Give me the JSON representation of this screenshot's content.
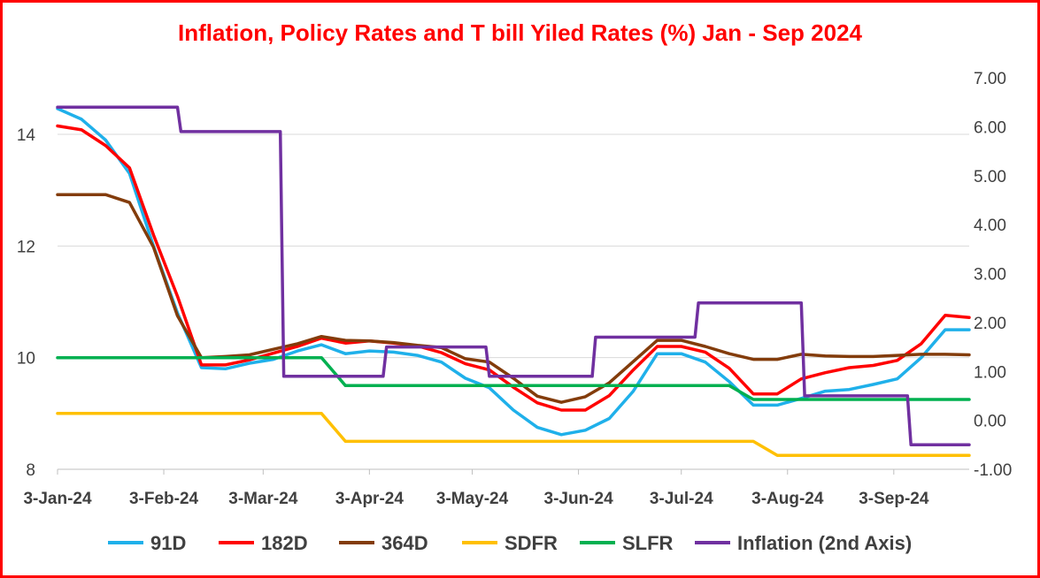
{
  "chart_data": {
    "type": "line",
    "title": "Inflation, Policy Rates and T bill Yiled Rates (%) Jan - Sep 2024",
    "x_tick_labels": [
      "3-Jan-24",
      "3-Feb-24",
      "3-Mar-24",
      "3-Apr-24",
      "3-May-24",
      "3-Jun-24",
      "3-Jul-24",
      "3-Aug-24",
      "3-Sep-24"
    ],
    "y_left": {
      "ticks": [
        "8",
        "10",
        "12",
        "14"
      ],
      "ylim": [
        8,
        15
      ]
    },
    "y_right": {
      "ticks": [
        "-1.00",
        "0.00",
        "1.00",
        "2.00",
        "3.00",
        "4.00",
        "5.00",
        "6.00",
        "7.00"
      ],
      "ylim": [
        -1,
        7.5
      ]
    },
    "grid": "horizontal",
    "legend_position": "bottom",
    "x": [
      "2024-01-03",
      "2024-01-10",
      "2024-01-17",
      "2024-01-24",
      "2024-01-31",
      "2024-02-07",
      "2024-02-14",
      "2024-02-21",
      "2024-02-28",
      "2024-03-06",
      "2024-03-13",
      "2024-03-20",
      "2024-03-27",
      "2024-04-03",
      "2024-04-10",
      "2024-04-17",
      "2024-04-24",
      "2024-05-01",
      "2024-05-08",
      "2024-05-15",
      "2024-05-22",
      "2024-05-29",
      "2024-06-05",
      "2024-06-12",
      "2024-06-19",
      "2024-06-26",
      "2024-07-03",
      "2024-07-10",
      "2024-07-17",
      "2024-07-24",
      "2024-07-31",
      "2024-08-07",
      "2024-08-14",
      "2024-08-21",
      "2024-08-28",
      "2024-09-04",
      "2024-09-11",
      "2024-09-18",
      "2024-09-25"
    ],
    "series": [
      {
        "name": "91D",
        "color": "#1fb0ea",
        "axis": "left",
        "values": [
          14.46,
          14.27,
          13.9,
          13.3,
          12.0,
          10.8,
          9.82,
          9.8,
          9.9,
          9.97,
          10.12,
          10.23,
          10.07,
          10.12,
          10.1,
          10.04,
          9.92,
          9.63,
          9.46,
          9.06,
          8.75,
          8.62,
          8.7,
          8.91,
          9.4,
          10.07,
          10.07,
          9.92,
          9.57,
          9.15,
          9.15,
          9.27,
          9.4,
          9.43,
          9.52,
          9.62,
          10.0,
          10.5,
          10.5
        ]
      },
      {
        "name": "182D",
        "color": "#ff0000",
        "axis": "left",
        "values": [
          14.15,
          14.08,
          13.8,
          13.4,
          12.2,
          11.1,
          9.87,
          9.87,
          9.96,
          10.08,
          10.2,
          10.35,
          10.26,
          10.3,
          10.26,
          10.21,
          10.09,
          9.89,
          9.78,
          9.47,
          9.19,
          9.06,
          9.06,
          9.32,
          9.78,
          10.2,
          10.2,
          10.1,
          9.81,
          9.35,
          9.35,
          9.62,
          9.73,
          9.82,
          9.86,
          9.95,
          10.25,
          10.76,
          10.72
        ]
      },
      {
        "name": "364D",
        "color": "#833c0b",
        "axis": "left",
        "values": [
          12.92,
          12.92,
          12.92,
          12.78,
          11.98,
          10.75,
          10.0,
          10.02,
          10.05,
          10.15,
          10.25,
          10.38,
          10.31,
          10.3,
          10.27,
          10.22,
          10.18,
          9.98,
          9.92,
          9.63,
          9.31,
          9.2,
          9.3,
          9.55,
          9.93,
          10.31,
          10.31,
          10.2,
          10.07,
          9.97,
          9.97,
          10.06,
          10.03,
          10.02,
          10.02,
          10.04,
          10.06,
          10.06,
          10.05
        ]
      },
      {
        "name": "SDFR",
        "color": "#ffc000",
        "axis": "left",
        "values": [
          9.0,
          9.0,
          9.0,
          9.0,
          9.0,
          9.0,
          9.0,
          9.0,
          9.0,
          9.0,
          9.0,
          9.0,
          8.5,
          8.5,
          8.5,
          8.5,
          8.5,
          8.5,
          8.5,
          8.5,
          8.5,
          8.5,
          8.5,
          8.5,
          8.5,
          8.5,
          8.5,
          8.5,
          8.5,
          8.5,
          8.25,
          8.25,
          8.25,
          8.25,
          8.25,
          8.25,
          8.25,
          8.25,
          8.25
        ]
      },
      {
        "name": "SLFR",
        "color": "#00b050",
        "axis": "left",
        "values": [
          10.0,
          10.0,
          10.0,
          10.0,
          10.0,
          10.0,
          10.0,
          10.0,
          10.0,
          10.0,
          10.0,
          10.0,
          9.5,
          9.5,
          9.5,
          9.5,
          9.5,
          9.5,
          9.5,
          9.5,
          9.5,
          9.5,
          9.5,
          9.5,
          9.5,
          9.5,
          9.5,
          9.5,
          9.5,
          9.25,
          9.25,
          9.25,
          9.25,
          9.25,
          9.25,
          9.25,
          9.25,
          9.25,
          9.25
        ]
      },
      {
        "name": "Inflation (2nd Axis)",
        "color": "#7030a0",
        "axis": "right",
        "x": [
          "2024-01-03",
          "2024-02-07",
          "2024-02-08",
          "2024-03-08",
          "2024-03-09",
          "2024-04-07",
          "2024-04-08",
          "2024-05-07",
          "2024-05-08",
          "2024-06-07",
          "2024-06-08",
          "2024-07-07",
          "2024-07-08",
          "2024-08-07",
          "2024-08-08",
          "2024-09-07",
          "2024-09-08",
          "2024-09-25"
        ],
        "values": [
          6.4,
          6.4,
          5.9,
          5.9,
          0.9,
          0.9,
          1.5,
          1.5,
          0.9,
          0.9,
          1.7,
          1.7,
          2.4,
          2.4,
          0.5,
          0.5,
          -0.5,
          -0.5
        ]
      }
    ]
  }
}
